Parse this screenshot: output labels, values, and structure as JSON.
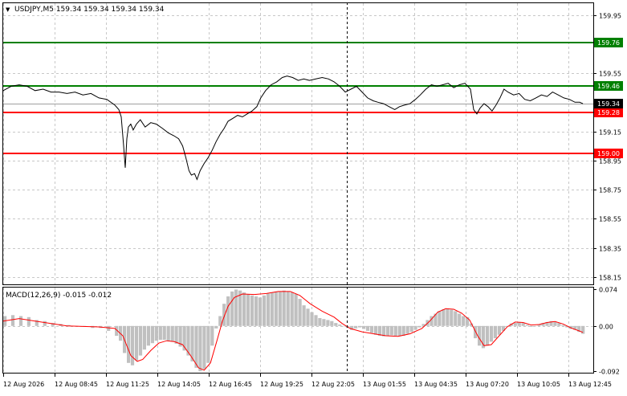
{
  "header": {
    "menu_glyph": "▼",
    "symbol_label": "USDJPY,M5  159.34 159.34 159.34 159.34"
  },
  "price_axis": {
    "ticks": [
      "159.95",
      "159.55",
      "159.15",
      "158.95",
      "158.75",
      "158.55",
      "158.35",
      "158.15"
    ]
  },
  "levels": [
    {
      "label": "159.76",
      "value": 159.76,
      "color": "#008000"
    },
    {
      "label": "159.46",
      "value": 159.46,
      "color": "#008000"
    },
    {
      "label": "159.28",
      "value": 159.28,
      "color": "#ff0000"
    },
    {
      "label": "159.00",
      "value": 159.0,
      "color": "#ff0000"
    }
  ],
  "current_price": {
    "label": "159.34",
    "value": 159.34,
    "color": "#000000"
  },
  "macd": {
    "title": "MACD(12,26,9) -0.015 -0.012",
    "axis_ticks": [
      "0.074",
      "0.00",
      "-0.092"
    ],
    "histogram_color": "#c0c0c0",
    "signal_color": "#ff0000"
  },
  "time_axis": {
    "labels": [
      "12 Aug 2026",
      "12 Aug 08:45",
      "12 Aug 11:25",
      "12 Aug 14:05",
      "12 Aug 16:45",
      "12 Aug 19:25",
      "12 Aug 22:05",
      "13 Aug 01:55",
      "13 Aug 04:35",
      "13 Aug 07:20",
      "13 Aug 10:05",
      "13 Aug 12:45"
    ]
  },
  "chart_data": {
    "type": "line",
    "price_range": [
      158.1,
      160.03
    ],
    "macd_range": [
      -0.095,
      0.078
    ],
    "price_points": [
      [
        0,
        159.43
      ],
      [
        10,
        159.46
      ],
      [
        20,
        159.47
      ],
      [
        30,
        159.46
      ],
      [
        40,
        159.43
      ],
      [
        50,
        159.44
      ],
      [
        60,
        159.42
      ],
      [
        70,
        159.42
      ],
      [
        80,
        159.41
      ],
      [
        90,
        159.42
      ],
      [
        100,
        159.4
      ],
      [
        110,
        159.41
      ],
      [
        120,
        159.38
      ],
      [
        130,
        159.37
      ],
      [
        140,
        159.33
      ],
      [
        145,
        159.3
      ],
      [
        148,
        159.25
      ],
      [
        151,
        159.05
      ],
      [
        153,
        158.9
      ],
      [
        155,
        159.1
      ],
      [
        157,
        159.18
      ],
      [
        160,
        159.2
      ],
      [
        163,
        159.16
      ],
      [
        167,
        159.2
      ],
      [
        172,
        159.23
      ],
      [
        178,
        159.18
      ],
      [
        185,
        159.21
      ],
      [
        192,
        159.2
      ],
      [
        200,
        159.17
      ],
      [
        207,
        159.14
      ],
      [
        214,
        159.12
      ],
      [
        220,
        159.1
      ],
      [
        225,
        159.05
      ],
      [
        229,
        158.97
      ],
      [
        233,
        158.88
      ],
      [
        236,
        158.85
      ],
      [
        240,
        158.86
      ],
      [
        243,
        158.82
      ],
      [
        247,
        158.88
      ],
      [
        252,
        158.93
      ],
      [
        257,
        158.97
      ],
      [
        262,
        159.02
      ],
      [
        267,
        159.08
      ],
      [
        272,
        159.13
      ],
      [
        277,
        159.17
      ],
      [
        282,
        159.22
      ],
      [
        288,
        159.24
      ],
      [
        294,
        159.26
      ],
      [
        300,
        159.25
      ],
      [
        306,
        159.27
      ],
      [
        312,
        159.29
      ],
      [
        318,
        159.32
      ],
      [
        323,
        159.38
      ],
      [
        329,
        159.43
      ],
      [
        336,
        159.47
      ],
      [
        343,
        159.49
      ],
      [
        350,
        159.52
      ],
      [
        356,
        159.53
      ],
      [
        363,
        159.52
      ],
      [
        370,
        159.5
      ],
      [
        377,
        159.51
      ],
      [
        384,
        159.5
      ],
      [
        392,
        159.51
      ],
      [
        400,
        159.52
      ],
      [
        408,
        159.51
      ],
      [
        415,
        159.49
      ],
      [
        422,
        159.46
      ],
      [
        429,
        159.42
      ],
      [
        436,
        159.44
      ],
      [
        443,
        159.46
      ],
      [
        450,
        159.42
      ],
      [
        457,
        159.38
      ],
      [
        464,
        159.36
      ],
      [
        470,
        159.35
      ],
      [
        477,
        159.34
      ],
      [
        484,
        159.32
      ],
      [
        491,
        159.3
      ],
      [
        497,
        159.32
      ],
      [
        503,
        159.33
      ],
      [
        510,
        159.34
      ],
      [
        517,
        159.37
      ],
      [
        523,
        159.4
      ],
      [
        530,
        159.44
      ],
      [
        537,
        159.47
      ],
      [
        544,
        159.46
      ],
      [
        551,
        159.47
      ],
      [
        558,
        159.48
      ],
      [
        565,
        159.45
      ],
      [
        572,
        159.47
      ],
      [
        579,
        159.48
      ],
      [
        586,
        159.44
      ],
      [
        590,
        159.3
      ],
      [
        594,
        159.27
      ],
      [
        598,
        159.31
      ],
      [
        603,
        159.34
      ],
      [
        608,
        159.32
      ],
      [
        613,
        159.29
      ],
      [
        618,
        159.33
      ],
      [
        623,
        159.38
      ],
      [
        628,
        159.44
      ],
      [
        633,
        159.42
      ],
      [
        640,
        159.4
      ],
      [
        647,
        159.41
      ],
      [
        654,
        159.37
      ],
      [
        661,
        159.36
      ],
      [
        668,
        159.38
      ],
      [
        675,
        159.4
      ],
      [
        682,
        159.39
      ],
      [
        689,
        159.42
      ],
      [
        696,
        159.4
      ],
      [
        703,
        159.38
      ],
      [
        710,
        159.37
      ],
      [
        717,
        159.35
      ],
      [
        723,
        159.35
      ],
      [
        727,
        159.34
      ]
    ],
    "macd_histogram": [
      [
        0,
        0.02
      ],
      [
        10,
        0.022
      ],
      [
        20,
        0.02
      ],
      [
        30,
        0.018
      ],
      [
        40,
        0.012
      ],
      [
        50,
        0.01
      ],
      [
        60,
        0.006
      ],
      [
        70,
        0.004
      ],
      [
        80,
        0.002
      ],
      [
        90,
        0.0
      ],
      [
        100,
        -0.002
      ],
      [
        110,
        -0.004
      ],
      [
        120,
        -0.004
      ],
      [
        130,
        -0.01
      ],
      [
        140,
        -0.02
      ],
      [
        145,
        -0.03
      ],
      [
        150,
        -0.055
      ],
      [
        155,
        -0.075
      ],
      [
        160,
        -0.08
      ],
      [
        165,
        -0.07
      ],
      [
        170,
        -0.06
      ],
      [
        175,
        -0.048
      ],
      [
        180,
        -0.04
      ],
      [
        185,
        -0.035
      ],
      [
        190,
        -0.03
      ],
      [
        195,
        -0.028
      ],
      [
        200,
        -0.028
      ],
      [
        205,
        -0.03
      ],
      [
        210,
        -0.032
      ],
      [
        215,
        -0.036
      ],
      [
        220,
        -0.042
      ],
      [
        225,
        -0.05
      ],
      [
        230,
        -0.06
      ],
      [
        235,
        -0.072
      ],
      [
        240,
        -0.085
      ],
      [
        245,
        -0.092
      ],
      [
        250,
        -0.088
      ],
      [
        255,
        -0.075
      ],
      [
        260,
        -0.04
      ],
      [
        265,
        -0.005
      ],
      [
        270,
        0.02
      ],
      [
        275,
        0.045
      ],
      [
        280,
        0.06
      ],
      [
        285,
        0.07
      ],
      [
        290,
        0.074
      ],
      [
        295,
        0.072
      ],
      [
        300,
        0.068
      ],
      [
        305,
        0.064
      ],
      [
        310,
        0.062
      ],
      [
        315,
        0.06
      ],
      [
        320,
        0.058
      ],
      [
        325,
        0.062
      ],
      [
        330,
        0.066
      ],
      [
        335,
        0.068
      ],
      [
        340,
        0.07
      ],
      [
        345,
        0.07
      ],
      [
        350,
        0.072
      ],
      [
        355,
        0.07
      ],
      [
        360,
        0.068
      ],
      [
        365,
        0.065
      ],
      [
        370,
        0.055
      ],
      [
        375,
        0.042
      ],
      [
        380,
        0.035
      ],
      [
        385,
        0.028
      ],
      [
        390,
        0.022
      ],
      [
        395,
        0.016
      ],
      [
        400,
        0.014
      ],
      [
        405,
        0.012
      ],
      [
        410,
        0.01
      ],
      [
        415,
        0.006
      ],
      [
        420,
        0.003
      ],
      [
        425,
        0.0
      ],
      [
        430,
        -0.004
      ],
      [
        435,
        -0.008
      ],
      [
        440,
        -0.005
      ],
      [
        445,
        -0.003
      ],
      [
        450,
        -0.006
      ],
      [
        455,
        -0.01
      ],
      [
        460,
        -0.014
      ],
      [
        465,
        -0.018
      ],
      [
        470,
        -0.02
      ],
      [
        475,
        -0.021
      ],
      [
        480,
        -0.02
      ],
      [
        485,
        -0.019
      ],
      [
        490,
        -0.02
      ],
      [
        495,
        -0.021
      ],
      [
        500,
        -0.02
      ],
      [
        505,
        -0.016
      ],
      [
        510,
        -0.012
      ],
      [
        515,
        -0.008
      ],
      [
        520,
        -0.003
      ],
      [
        525,
        0.004
      ],
      [
        530,
        0.012
      ],
      [
        535,
        0.02
      ],
      [
        540,
        0.025
      ],
      [
        545,
        0.03
      ],
      [
        550,
        0.034
      ],
      [
        555,
        0.035
      ],
      [
        560,
        0.033
      ],
      [
        565,
        0.03
      ],
      [
        570,
        0.025
      ],
      [
        575,
        0.02
      ],
      [
        580,
        0.018
      ],
      [
        585,
        0.005
      ],
      [
        590,
        -0.025
      ],
      [
        595,
        -0.04
      ],
      [
        600,
        -0.045
      ],
      [
        605,
        -0.04
      ],
      [
        610,
        -0.032
      ],
      [
        615,
        -0.025
      ],
      [
        620,
        -0.018
      ],
      [
        625,
        -0.01
      ],
      [
        630,
        0.0
      ],
      [
        635,
        0.005
      ],
      [
        640,
        0.006
      ],
      [
        645,
        0.008
      ],
      [
        650,
        0.006
      ],
      [
        655,
        0.002
      ],
      [
        660,
        -0.002
      ],
      [
        665,
        0.0
      ],
      [
        670,
        0.003
      ],
      [
        675,
        0.006
      ],
      [
        680,
        0.008
      ],
      [
        685,
        0.01
      ],
      [
        690,
        0.008
      ],
      [
        695,
        0.006
      ],
      [
        700,
        0.002
      ],
      [
        705,
        -0.003
      ],
      [
        710,
        -0.006
      ],
      [
        715,
        -0.008
      ],
      [
        720,
        -0.012
      ],
      [
        725,
        -0.016
      ]
    ],
    "macd_signal": [
      [
        0,
        0.01
      ],
      [
        20,
        0.015
      ],
      [
        40,
        0.01
      ],
      [
        60,
        0.005
      ],
      [
        80,
        0.0
      ],
      [
        100,
        -0.001
      ],
      [
        120,
        -0.002
      ],
      [
        140,
        -0.005
      ],
      [
        150,
        -0.02
      ],
      [
        160,
        -0.06
      ],
      [
        168,
        -0.072
      ],
      [
        175,
        -0.068
      ],
      [
        185,
        -0.05
      ],
      [
        195,
        -0.035
      ],
      [
        205,
        -0.03
      ],
      [
        215,
        -0.032
      ],
      [
        225,
        -0.038
      ],
      [
        235,
        -0.06
      ],
      [
        245,
        -0.085
      ],
      [
        252,
        -0.09
      ],
      [
        260,
        -0.075
      ],
      [
        268,
        -0.03
      ],
      [
        275,
        0.01
      ],
      [
        282,
        0.04
      ],
      [
        290,
        0.058
      ],
      [
        300,
        0.065
      ],
      [
        315,
        0.064
      ],
      [
        330,
        0.066
      ],
      [
        345,
        0.07
      ],
      [
        360,
        0.07
      ],
      [
        372,
        0.062
      ],
      [
        385,
        0.045
      ],
      [
        400,
        0.03
      ],
      [
        415,
        0.018
      ],
      [
        425,
        0.005
      ],
      [
        435,
        -0.005
      ],
      [
        450,
        -0.012
      ],
      [
        465,
        -0.016
      ],
      [
        480,
        -0.02
      ],
      [
        495,
        -0.021
      ],
      [
        510,
        -0.016
      ],
      [
        525,
        -0.005
      ],
      [
        535,
        0.01
      ],
      [
        545,
        0.028
      ],
      [
        555,
        0.035
      ],
      [
        565,
        0.034
      ],
      [
        575,
        0.026
      ],
      [
        585,
        0.012
      ],
      [
        595,
        -0.02
      ],
      [
        603,
        -0.04
      ],
      [
        612,
        -0.038
      ],
      [
        622,
        -0.02
      ],
      [
        632,
        -0.002
      ],
      [
        642,
        0.008
      ],
      [
        652,
        0.007
      ],
      [
        662,
        0.002
      ],
      [
        672,
        0.003
      ],
      [
        682,
        0.007
      ],
      [
        692,
        0.009
      ],
      [
        702,
        0.004
      ],
      [
        712,
        -0.004
      ],
      [
        722,
        -0.01
      ],
      [
        727,
        -0.013
      ]
    ]
  }
}
